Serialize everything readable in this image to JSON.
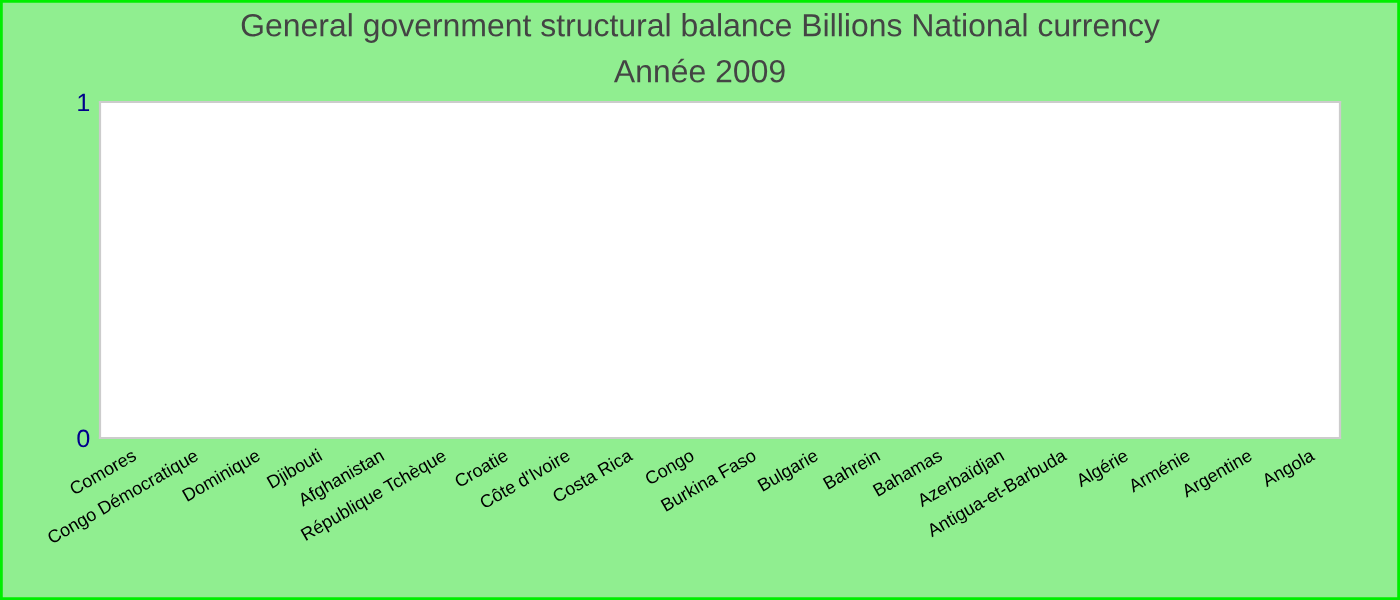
{
  "chart_data": {
    "type": "bar",
    "title": "General government structural balance Billions National currency",
    "subtitle": "Année 2009",
    "categories": [
      "Comores",
      "Congo Démocratique",
      "Dominique",
      "Djibouti",
      "Afghanistan",
      "République Tchèque",
      "Croatie",
      "Côte d'Ivoire",
      "Costa Rica",
      "Congo",
      "Burkina Faso",
      "Bulgarie",
      "Bahrein",
      "Bahamas",
      "Azerbaïdjan",
      "Antigua-et-Barbuda",
      "Algérie",
      "Arménie",
      "Argentine",
      "Angola"
    ],
    "values": [
      null,
      null,
      null,
      null,
      null,
      null,
      null,
      null,
      null,
      null,
      null,
      null,
      null,
      null,
      null,
      null,
      null,
      null,
      null,
      null
    ],
    "ylim": [
      0,
      1
    ],
    "yticks": [
      0,
      1
    ],
    "grid": false,
    "legend": false
  }
}
